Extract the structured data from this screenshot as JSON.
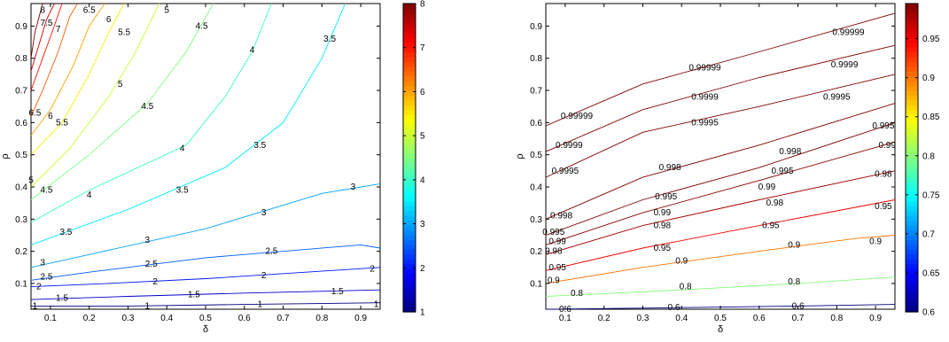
{
  "chart_data": [
    {
      "type": "contour",
      "xlabel": "δ",
      "ylabel": "ρ",
      "xlim": [
        0.05,
        0.95
      ],
      "ylim": [
        0.02,
        0.97
      ],
      "x_ticks": [
        "0.1",
        "0.2",
        "0.3",
        "0.4",
        "0.5",
        "0.6",
        "0.7",
        "0.8",
        "0.9"
      ],
      "y_ticks": [
        "0.1",
        "0.2",
        "0.3",
        "0.4",
        "0.5",
        "0.6",
        "0.7",
        "0.8",
        "0.9"
      ],
      "colorbar": {
        "range": [
          1,
          8
        ],
        "ticks": [
          "1",
          "2",
          "3",
          "4",
          "5",
          "6",
          "7",
          "8"
        ],
        "colormap": "jet"
      },
      "levels": [
        {
          "label": "1",
          "value": 1,
          "points": [
            [
              0.05,
              0.03
            ],
            [
              0.3,
              0.03
            ],
            [
              0.6,
              0.035
            ],
            [
              0.95,
              0.04
            ]
          ],
          "labels_at": [
            [
              0.06,
              0.03
            ],
            [
              0.35,
              0.03
            ],
            [
              0.64,
              0.035
            ],
            [
              0.94,
              0.035
            ]
          ]
        },
        {
          "label": "1.5",
          "value": 1.5,
          "points": [
            [
              0.05,
              0.05
            ],
            [
              0.3,
              0.06
            ],
            [
              0.6,
              0.07
            ],
            [
              0.95,
              0.08
            ]
          ],
          "labels_at": [
            [
              0.13,
              0.055
            ],
            [
              0.47,
              0.065
            ],
            [
              0.84,
              0.075
            ]
          ]
        },
        {
          "label": "2",
          "value": 2,
          "points": [
            [
              0.05,
              0.09
            ],
            [
              0.25,
              0.1
            ],
            [
              0.5,
              0.115
            ],
            [
              0.95,
              0.15
            ]
          ],
          "labels_at": [
            [
              0.07,
              0.09
            ],
            [
              0.37,
              0.105
            ],
            [
              0.65,
              0.125
            ],
            [
              0.93,
              0.145
            ]
          ]
        },
        {
          "label": "2.5",
          "value": 2.5,
          "points": [
            [
              0.05,
              0.11
            ],
            [
              0.2,
              0.135
            ],
            [
              0.5,
              0.18
            ],
            [
              0.9,
              0.22
            ],
            [
              0.95,
              0.21
            ]
          ],
          "labels_at": [
            [
              0.09,
              0.12
            ],
            [
              0.36,
              0.16
            ],
            [
              0.67,
              0.2
            ]
          ]
        },
        {
          "label": "3",
          "value": 3,
          "points": [
            [
              0.05,
              0.15
            ],
            [
              0.2,
              0.19
            ],
            [
              0.5,
              0.27
            ],
            [
              0.8,
              0.38
            ],
            [
              0.95,
              0.41
            ]
          ],
          "labels_at": [
            [
              0.08,
              0.165
            ],
            [
              0.35,
              0.235
            ],
            [
              0.65,
              0.32
            ],
            [
              0.88,
              0.4
            ]
          ]
        },
        {
          "label": "3.5",
          "value": 3.5,
          "points": [
            [
              0.05,
              0.22
            ],
            [
              0.3,
              0.33
            ],
            [
              0.55,
              0.46
            ],
            [
              0.7,
              0.6
            ],
            [
              0.8,
              0.8
            ],
            [
              0.86,
              0.97
            ]
          ],
          "labels_at": [
            [
              0.14,
              0.26
            ],
            [
              0.44,
              0.39
            ],
            [
              0.64,
              0.53
            ],
            [
              0.82,
              0.86
            ]
          ]
        },
        {
          "label": "4",
          "value": 4,
          "points": [
            [
              0.05,
              0.29
            ],
            [
              0.2,
              0.39
            ],
            [
              0.45,
              0.53
            ],
            [
              0.55,
              0.68
            ],
            [
              0.62,
              0.82
            ],
            [
              0.67,
              0.97
            ]
          ],
          "labels_at": [
            [
              0.2,
              0.375
            ],
            [
              0.44,
              0.52
            ],
            [
              0.62,
              0.825
            ]
          ]
        },
        {
          "label": "4.5",
          "value": 4.5,
          "points": [
            [
              0.05,
              0.36
            ],
            [
              0.2,
              0.5
            ],
            [
              0.35,
              0.66
            ],
            [
              0.45,
              0.82
            ],
            [
              0.52,
              0.97
            ]
          ],
          "labels_at": [
            [
              0.09,
              0.39
            ],
            [
              0.35,
              0.65
            ],
            [
              0.49,
              0.9
            ]
          ]
        },
        {
          "label": "5",
          "value": 5,
          "points": [
            [
              0.05,
              0.4
            ],
            [
              0.15,
              0.52
            ],
            [
              0.25,
              0.68
            ],
            [
              0.32,
              0.82
            ],
            [
              0.38,
              0.97
            ]
          ],
          "labels_at": [
            [
              0.05,
              0.42
            ],
            [
              0.28,
              0.72
            ],
            [
              0.4,
              0.95
            ]
          ]
        },
        {
          "label": "5.5",
          "value": 5.5,
          "points": [
            [
              0.05,
              0.5
            ],
            [
              0.13,
              0.6
            ],
            [
              0.2,
              0.75
            ],
            [
              0.25,
              0.88
            ],
            [
              0.29,
              0.97
            ]
          ],
          "labels_at": [
            [
              0.13,
              0.6
            ],
            [
              0.29,
              0.88
            ]
          ]
        },
        {
          "label": "6",
          "value": 6,
          "points": [
            [
              0.05,
              0.56
            ],
            [
              0.1,
              0.64
            ],
            [
              0.16,
              0.78
            ],
            [
              0.2,
              0.9
            ],
            [
              0.24,
              0.97
            ]
          ],
          "labels_at": [
            [
              0.1,
              0.62
            ],
            [
              0.25,
              0.92
            ]
          ]
        },
        {
          "label": "6.5",
          "value": 6.5,
          "points": [
            [
              0.05,
              0.62
            ],
            [
              0.08,
              0.7
            ],
            [
              0.12,
              0.82
            ],
            [
              0.15,
              0.93
            ],
            [
              0.17,
              0.97
            ]
          ],
          "labels_at": [
            [
              0.06,
              0.63
            ],
            [
              0.2,
              0.95
            ]
          ]
        },
        {
          "label": "7",
          "value": 7,
          "points": [
            [
              0.05,
              0.7
            ],
            [
              0.08,
              0.8
            ],
            [
              0.11,
              0.9
            ],
            [
              0.13,
              0.97
            ]
          ],
          "labels_at": [
            [
              0.12,
              0.89
            ]
          ]
        },
        {
          "label": "7.5",
          "value": 7.5,
          "points": [
            [
              0.05,
              0.76
            ],
            [
              0.07,
              0.84
            ],
            [
              0.09,
              0.92
            ],
            [
              0.11,
              0.97
            ]
          ],
          "labels_at": [
            [
              0.09,
              0.91
            ]
          ]
        },
        {
          "label": "8",
          "value": 8,
          "points": [
            [
              0.05,
              0.8
            ],
            [
              0.06,
              0.88
            ],
            [
              0.08,
              0.97
            ]
          ],
          "labels_at": [
            [
              0.08,
              0.95
            ]
          ]
        }
      ]
    },
    {
      "type": "contour",
      "xlabel": "δ",
      "ylabel": "ρ",
      "xlim": [
        0.05,
        0.95
      ],
      "ylim": [
        0.02,
        0.97
      ],
      "x_ticks": [
        "0.1",
        "0.2",
        "0.3",
        "0.4",
        "0.5",
        "0.6",
        "0.7",
        "0.8",
        "0.9"
      ],
      "y_ticks": [
        "0.1",
        "0.2",
        "0.3",
        "0.4",
        "0.5",
        "0.6",
        "0.7",
        "0.8",
        "0.9"
      ],
      "colorbar": {
        "range": [
          0.6,
          0.995
        ],
        "ticks": [
          "0.6",
          "0.65",
          "0.7",
          "0.75",
          "0.8",
          "0.85",
          "0.9",
          "0.95"
        ],
        "colormap": "jet"
      },
      "levels": [
        {
          "label": "0.6",
          "value": 0.6,
          "points": [
            [
              0.05,
              0.02
            ],
            [
              0.4,
              0.025
            ],
            [
              0.7,
              0.03
            ],
            [
              0.95,
              0.035
            ]
          ],
          "labels_at": [
            [
              0.1,
              0.02
            ],
            [
              0.38,
              0.025
            ],
            [
              0.7,
              0.03
            ]
          ]
        },
        {
          "label": "0.8",
          "value": 0.8,
          "points": [
            [
              0.05,
              0.06
            ],
            [
              0.4,
              0.08
            ],
            [
              0.7,
              0.1
            ],
            [
              0.95,
              0.12
            ]
          ],
          "labels_at": [
            [
              0.13,
              0.07
            ],
            [
              0.41,
              0.09
            ],
            [
              0.69,
              0.105
            ]
          ]
        },
        {
          "label": "0.9",
          "value": 0.9,
          "points": [
            [
              0.05,
              0.1
            ],
            [
              0.3,
              0.15
            ],
            [
              0.6,
              0.2
            ],
            [
              0.85,
              0.24
            ],
            [
              0.95,
              0.25
            ]
          ],
          "labels_at": [
            [
              0.07,
              0.11
            ],
            [
              0.4,
              0.17
            ],
            [
              0.69,
              0.22
            ],
            [
              0.9,
              0.23
            ]
          ]
        },
        {
          "label": "0.95",
          "value": 0.95,
          "points": [
            [
              0.05,
              0.14
            ],
            [
              0.3,
              0.21
            ],
            [
              0.6,
              0.28
            ],
            [
              0.95,
              0.36
            ]
          ],
          "labels_at": [
            [
              0.08,
              0.15
            ],
            [
              0.35,
              0.21
            ],
            [
              0.63,
              0.28
            ],
            [
              0.92,
              0.34
            ]
          ]
        },
        {
          "label": "0.98",
          "value": 0.98,
          "points": [
            [
              0.05,
              0.19
            ],
            [
              0.3,
              0.28
            ],
            [
              0.6,
              0.36
            ],
            [
              0.95,
              0.45
            ]
          ],
          "labels_at": [
            [
              0.07,
              0.2
            ],
            [
              0.35,
              0.28
            ],
            [
              0.64,
              0.35
            ],
            [
              0.92,
              0.44
            ]
          ]
        },
        {
          "label": "0.99",
          "value": 0.99,
          "points": [
            [
              0.05,
              0.22
            ],
            [
              0.3,
              0.32
            ],
            [
              0.6,
              0.42
            ],
            [
              0.95,
              0.54
            ]
          ],
          "labels_at": [
            [
              0.08,
              0.23
            ],
            [
              0.35,
              0.32
            ],
            [
              0.62,
              0.4
            ],
            [
              0.93,
              0.53
            ]
          ]
        },
        {
          "label": "0.995",
          "value": 0.995,
          "points": [
            [
              0.05,
              0.25
            ],
            [
              0.3,
              0.36
            ],
            [
              0.6,
              0.46
            ],
            [
              0.95,
              0.6
            ]
          ],
          "labels_at": [
            [
              0.07,
              0.26
            ],
            [
              0.36,
              0.37
            ],
            [
              0.66,
              0.45
            ],
            [
              0.92,
              0.59
            ]
          ]
        },
        {
          "label": "0.998",
          "value": 0.998,
          "points": [
            [
              0.05,
              0.3
            ],
            [
              0.3,
              0.43
            ],
            [
              0.6,
              0.53
            ],
            [
              0.95,
              0.66
            ]
          ],
          "labels_at": [
            [
              0.09,
              0.31
            ],
            [
              0.37,
              0.46
            ],
            [
              0.68,
              0.51
            ]
          ]
        },
        {
          "label": "0.9995",
          "value": 0.9995,
          "points": [
            [
              0.05,
              0.43
            ],
            [
              0.3,
              0.57
            ],
            [
              0.6,
              0.65
            ],
            [
              0.95,
              0.75
            ]
          ],
          "labels_at": [
            [
              0.1,
              0.45
            ],
            [
              0.46,
              0.6
            ],
            [
              0.8,
              0.68
            ]
          ]
        },
        {
          "label": "0.9999",
          "value": 0.9999,
          "points": [
            [
              0.05,
              0.51
            ],
            [
              0.3,
              0.64
            ],
            [
              0.6,
              0.74
            ],
            [
              0.95,
              0.84
            ]
          ],
          "labels_at": [
            [
              0.11,
              0.53
            ],
            [
              0.46,
              0.68
            ],
            [
              0.82,
              0.78
            ]
          ]
        },
        {
          "label": "0.99999",
          "value": 0.99999,
          "points": [
            [
              0.05,
              0.59
            ],
            [
              0.3,
              0.72
            ],
            [
              0.6,
              0.82
            ],
            [
              0.95,
              0.94
            ]
          ],
          "labels_at": [
            [
              0.13,
              0.62
            ],
            [
              0.46,
              0.77
            ],
            [
              0.83,
              0.88
            ]
          ]
        }
      ]
    }
  ]
}
